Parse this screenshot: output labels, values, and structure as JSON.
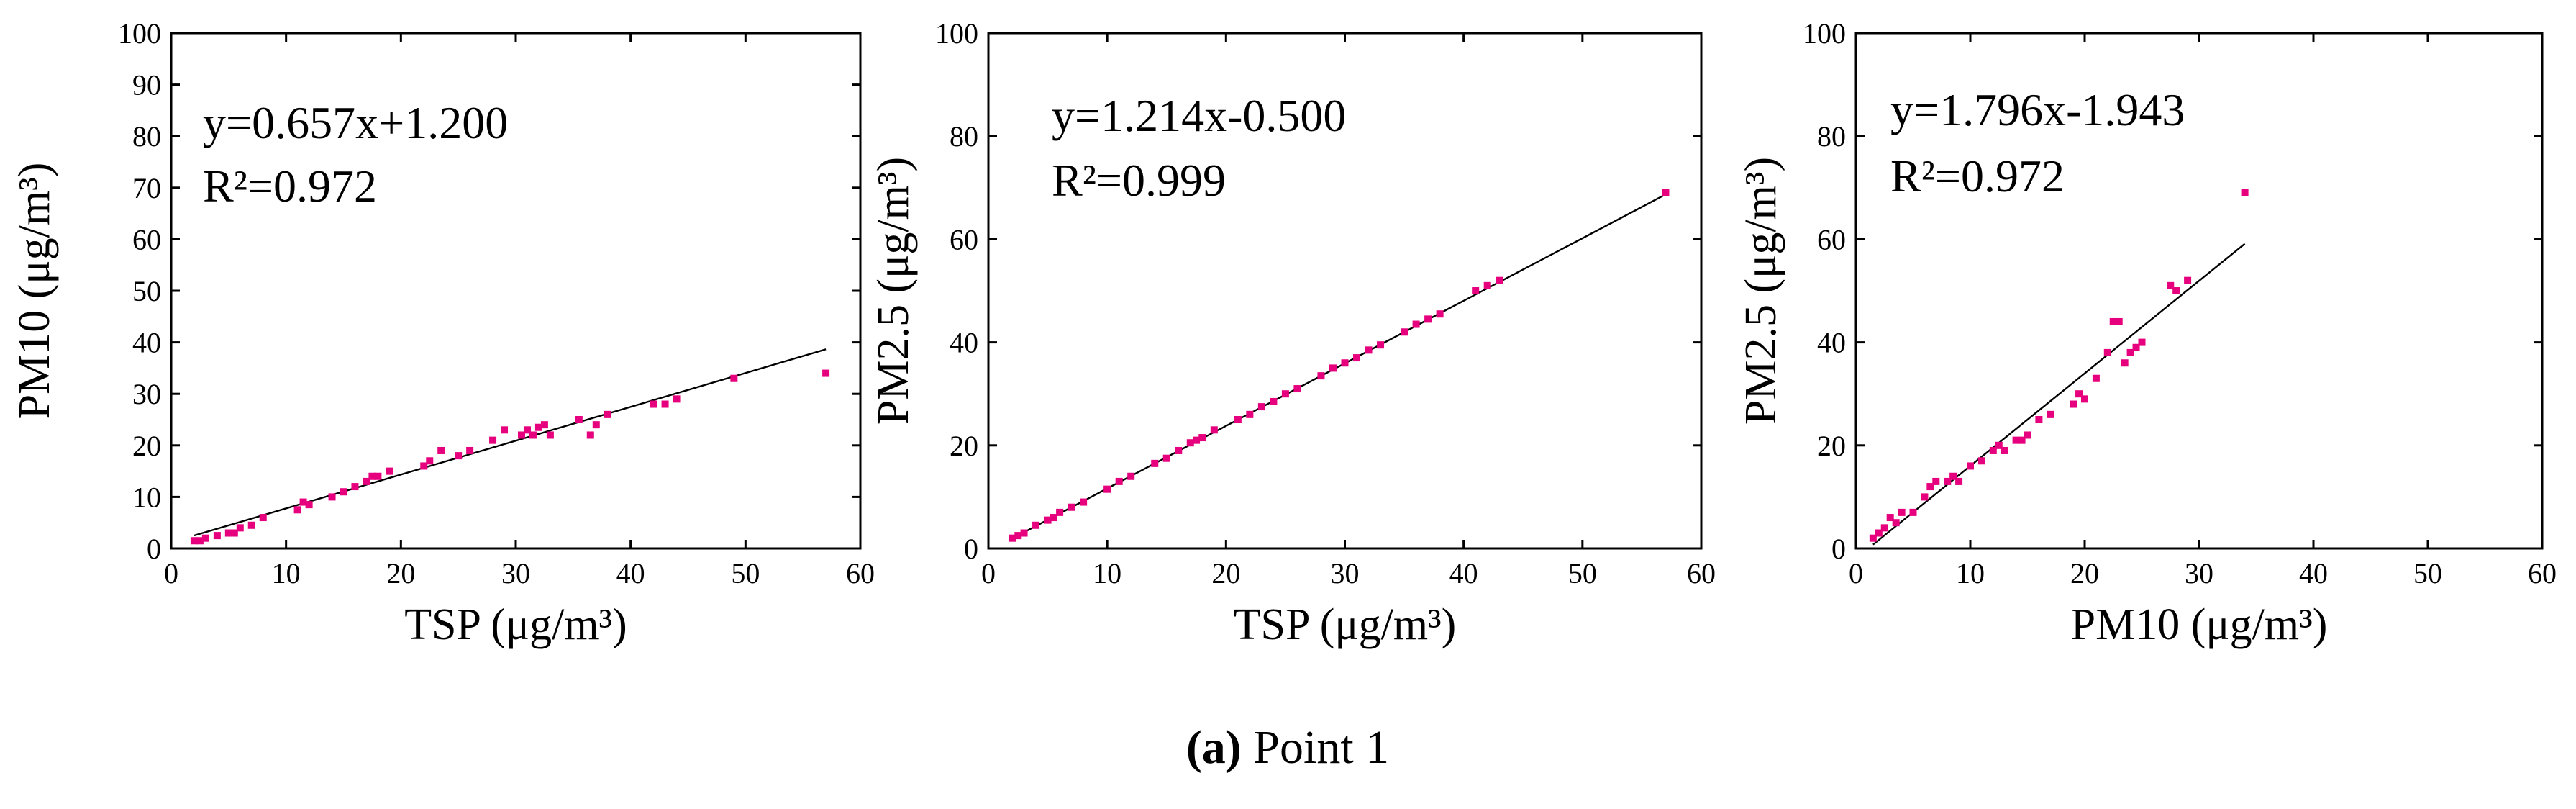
{
  "chart_data": [
    {
      "type": "scatter",
      "xlabel": "TSP (μg/m³)",
      "ylabel": "PM10 (μg/m³)",
      "xlim": [
        0,
        60
      ],
      "ylim": [
        0,
        100
      ],
      "xticks": [
        0,
        10,
        20,
        30,
        40,
        50,
        60
      ],
      "yticks": [
        0,
        10,
        20,
        30,
        40,
        50,
        60,
        70,
        80,
        90,
        100
      ],
      "equation": "y=0.657x+1.200",
      "r_squared": "R²=0.972",
      "fit": {
        "slope": 0.657,
        "intercept": 1.2,
        "x_range": [
          2,
          57
        ]
      },
      "x": [
        2,
        2.5,
        3,
        4,
        5,
        5.5,
        6,
        7,
        8,
        11,
        11.5,
        12,
        14,
        15,
        16,
        17,
        17.5,
        18,
        19,
        22,
        22.5,
        23.5,
        25,
        26,
        28,
        29,
        30.5,
        31,
        31.5,
        32,
        32.5,
        33,
        35.5,
        36.5,
        37,
        38,
        42,
        43,
        44,
        49,
        57
      ],
      "y": [
        1.5,
        1.5,
        2,
        2.5,
        3,
        3,
        4,
        4.5,
        6,
        7.5,
        9,
        8.5,
        10,
        11,
        12,
        13,
        14,
        14,
        15,
        16,
        17,
        19,
        18,
        19,
        21,
        23,
        22,
        23,
        22,
        23.5,
        24,
        22,
        25,
        22,
        24,
        26,
        28,
        28,
        29,
        33,
        34
      ]
    },
    {
      "type": "scatter",
      "xlabel": "TSP (μg/m³)",
      "ylabel": "PM2.5 (μg/m³)",
      "xlim": [
        0,
        60
      ],
      "ylim": [
        0,
        100
      ],
      "xticks": [
        0,
        10,
        20,
        30,
        40,
        50,
        60
      ],
      "yticks": [
        0,
        20,
        40,
        60,
        80,
        100
      ],
      "equation": "y=1.214x-0.500",
      "r_squared": "R²=0.999",
      "fit": {
        "slope": 1.214,
        "intercept": -0.5,
        "x_range": [
          2,
          57
        ]
      },
      "x": [
        2,
        2.5,
        3,
        4,
        5,
        5.5,
        6,
        7,
        8,
        10,
        11,
        12,
        14,
        15,
        16,
        17,
        17.5,
        18,
        19,
        21,
        22,
        23,
        24,
        25,
        26,
        28,
        29,
        30,
        31,
        32,
        33,
        35,
        36,
        37,
        38,
        41,
        42,
        43,
        57
      ],
      "y": [
        2,
        2.5,
        3,
        4.5,
        5.5,
        6,
        7,
        8,
        9,
        11.5,
        13,
        14,
        16.5,
        17.5,
        19,
        20.5,
        21,
        21.5,
        23,
        25,
        26,
        27.5,
        28.5,
        30,
        31,
        33.5,
        35,
        36,
        37,
        38.5,
        39.5,
        42,
        43.5,
        44.5,
        45.5,
        50,
        51,
        52,
        69
      ]
    },
    {
      "type": "scatter",
      "xlabel": "PM10 (μg/m³)",
      "ylabel": "PM2.5 (μg/m³)",
      "xlim": [
        0,
        60
      ],
      "ylim": [
        0,
        100
      ],
      "xticks": [
        0,
        10,
        20,
        30,
        40,
        50,
        60
      ],
      "yticks": [
        0,
        20,
        40,
        60,
        80,
        100
      ],
      "equation": "y=1.796x-1.943",
      "r_squared": "R²=0.972",
      "fit": {
        "slope": 1.796,
        "intercept": -1.943,
        "x_range": [
          1.5,
          34
        ]
      },
      "x": [
        1.5,
        2,
        2.5,
        3,
        3.5,
        4,
        5,
        6,
        6.5,
        7,
        8,
        8.5,
        9,
        10,
        11,
        12,
        12.5,
        13,
        14,
        14.5,
        15,
        16,
        17,
        19,
        19.5,
        20,
        21,
        22,
        22.5,
        23,
        23.5,
        24,
        24.5,
        25,
        27.5,
        28,
        29,
        34
      ],
      "y": [
        2,
        3,
        4,
        6,
        5,
        7,
        7,
        10,
        12,
        13,
        13,
        14,
        13,
        16,
        17,
        19,
        20,
        19,
        21,
        21,
        22,
        25,
        26,
        28,
        30,
        29,
        33,
        38,
        44,
        44,
        36,
        38,
        39,
        40,
        51,
        50,
        52,
        69
      ]
    }
  ],
  "caption": {
    "label": "(a)",
    "text": " Point 1"
  }
}
